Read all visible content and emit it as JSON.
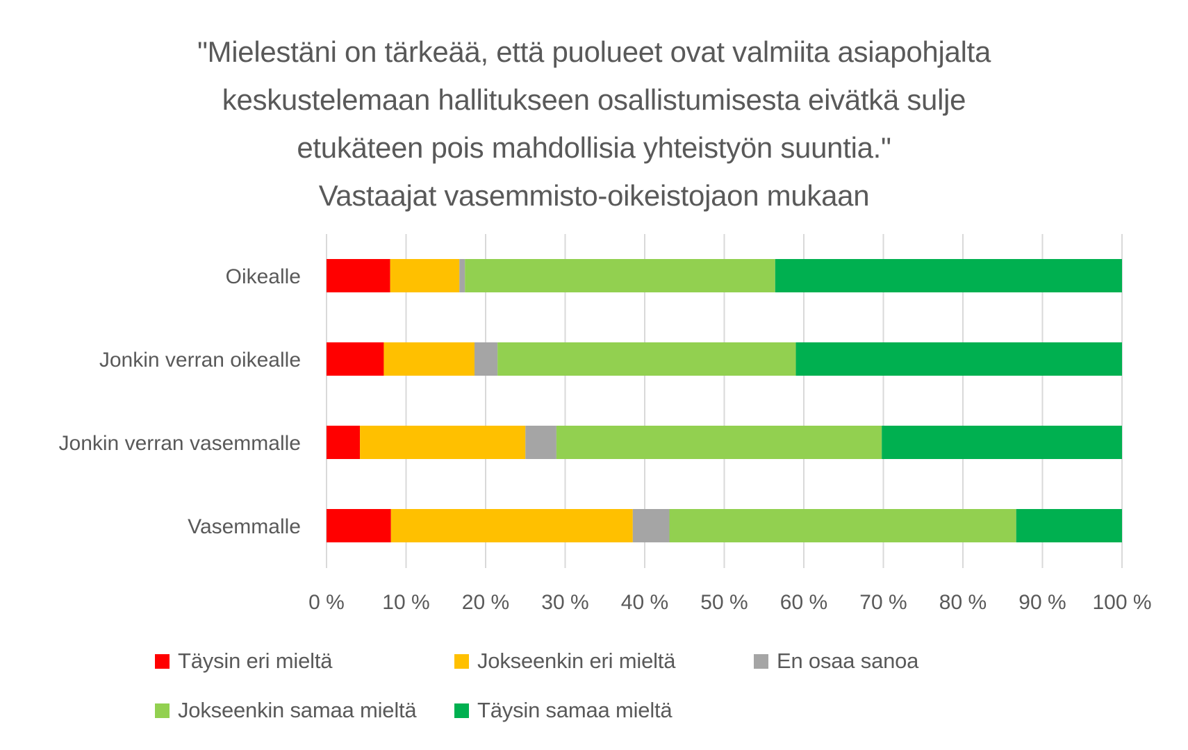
{
  "chart_data": {
    "type": "bar",
    "orientation": "horizontal",
    "stacked": "percent",
    "title": [
      "\"Mielestäni on tärkeää, että puolueet ovat valmiita asiapohjalta",
      "keskustelemaan hallitukseen osallistumisesta eivätkä sulje",
      "etukäteen pois mahdollisia yhteistyön suuntia.\"",
      "Vastaajat vasemmisto-oikeistojaon mukaan"
    ],
    "categories": [
      "Oikealle",
      "Jonkin verran oikealle",
      "Jonkin verran vasemmalle",
      "Vasemmalle"
    ],
    "series": [
      {
        "name": "Täysin eri mieltä",
        "color": "#FF0000",
        "values": [
          8.0,
          7.2,
          4.2,
          8.1
        ]
      },
      {
        "name": "Jokseenkin eri mieltä",
        "color": "#FFC000",
        "values": [
          8.7,
          11.4,
          20.8,
          30.4
        ]
      },
      {
        "name": "En osaa sanoa",
        "color": "#A5A5A5",
        "values": [
          0.7,
          2.9,
          3.9,
          4.6
        ]
      },
      {
        "name": "Jokseenkin samaa mieltä",
        "color": "#92D050",
        "values": [
          39.0,
          37.5,
          40.9,
          43.6
        ]
      },
      {
        "name": "Täysin samaa mieltä",
        "color": "#00B050",
        "values": [
          43.6,
          41.0,
          30.2,
          13.3
        ]
      }
    ],
    "xlim": [
      0,
      100
    ],
    "xticks": [
      "0 %",
      "10 %",
      "20 %",
      "30 %",
      "40 %",
      "50 %",
      "60 %",
      "70 %",
      "80 %",
      "90 %",
      "100 %"
    ],
    "xlabel": "",
    "ylabel": "",
    "grid": "vertical",
    "legend_position": "bottom"
  },
  "colors": {
    "text": "#595959",
    "gridline": "#D9D9D9"
  }
}
